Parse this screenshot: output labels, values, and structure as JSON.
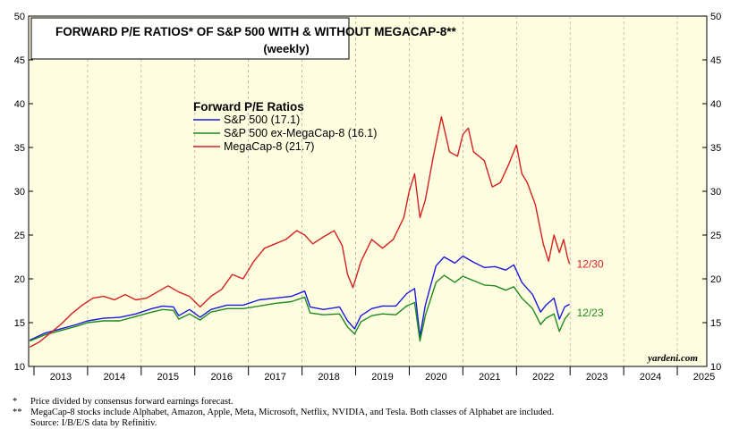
{
  "chart_data": {
    "type": "line",
    "title_line1": "FORWARD P/E RATIOS* OF S&P 500 WITH & WITHOUT MEGACAP-8**",
    "title_line2": "(weekly)",
    "ylim": [
      10,
      50
    ],
    "yticks": [
      "10",
      "15",
      "20",
      "25",
      "30",
      "35",
      "40",
      "45",
      "50"
    ],
    "xlim": [
      2012.9,
      2025.55
    ],
    "x_labels": [
      "2013",
      "2014",
      "2015",
      "2016",
      "2017",
      "2018",
      "2019",
      "2020",
      "2021",
      "2022",
      "2023",
      "2024",
      "2025"
    ],
    "legend_title": "Forward P/E Ratios",
    "series": [
      {
        "name": "S&P 500 (17.1)",
        "color": "#1a1adb",
        "points": [
          [
            2012.92,
            13.0
          ],
          [
            2013.2,
            13.8
          ],
          [
            2013.5,
            14.3
          ],
          [
            2013.8,
            14.8
          ],
          [
            2014.0,
            15.2
          ],
          [
            2014.3,
            15.5
          ],
          [
            2014.6,
            15.6
          ],
          [
            2014.9,
            16.0
          ],
          [
            2015.2,
            16.6
          ],
          [
            2015.4,
            16.9
          ],
          [
            2015.6,
            16.8
          ],
          [
            2015.7,
            15.8
          ],
          [
            2015.9,
            16.5
          ],
          [
            2016.1,
            15.6
          ],
          [
            2016.3,
            16.5
          ],
          [
            2016.6,
            17.0
          ],
          [
            2016.9,
            17.0
          ],
          [
            2017.2,
            17.6
          ],
          [
            2017.5,
            17.8
          ],
          [
            2017.8,
            18.0
          ],
          [
            2018.05,
            18.6
          ],
          [
            2018.15,
            16.8
          ],
          [
            2018.4,
            16.5
          ],
          [
            2018.7,
            16.8
          ],
          [
            2018.85,
            15.2
          ],
          [
            2018.98,
            14.3
          ],
          [
            2019.1,
            15.8
          ],
          [
            2019.3,
            16.6
          ],
          [
            2019.5,
            16.9
          ],
          [
            2019.75,
            16.9
          ],
          [
            2019.95,
            18.3
          ],
          [
            2020.1,
            18.9
          ],
          [
            2020.2,
            13.4
          ],
          [
            2020.3,
            17.0
          ],
          [
            2020.5,
            21.5
          ],
          [
            2020.65,
            22.5
          ],
          [
            2020.85,
            21.8
          ],
          [
            2021.0,
            22.6
          ],
          [
            2021.2,
            21.9
          ],
          [
            2021.4,
            21.3
          ],
          [
            2021.6,
            21.4
          ],
          [
            2021.8,
            21.0
          ],
          [
            2021.95,
            21.6
          ],
          [
            2022.1,
            19.6
          ],
          [
            2022.3,
            18.2
          ],
          [
            2022.45,
            16.2
          ],
          [
            2022.55,
            17.0
          ],
          [
            2022.7,
            17.8
          ],
          [
            2022.8,
            15.4
          ],
          [
            2022.9,
            16.8
          ],
          [
            2022.99,
            17.1
          ]
        ]
      },
      {
        "name": "S&P 500 ex-MegaCap-8 (16.1)",
        "color": "#1f8a1f",
        "points": [
          [
            2012.92,
            12.9
          ],
          [
            2013.2,
            13.6
          ],
          [
            2013.5,
            14.1
          ],
          [
            2013.8,
            14.6
          ],
          [
            2014.0,
            15.0
          ],
          [
            2014.3,
            15.2
          ],
          [
            2014.6,
            15.2
          ],
          [
            2014.9,
            15.7
          ],
          [
            2015.2,
            16.2
          ],
          [
            2015.4,
            16.5
          ],
          [
            2015.6,
            16.4
          ],
          [
            2015.7,
            15.4
          ],
          [
            2015.9,
            16.0
          ],
          [
            2016.1,
            15.3
          ],
          [
            2016.3,
            16.2
          ],
          [
            2016.6,
            16.6
          ],
          [
            2016.9,
            16.6
          ],
          [
            2017.2,
            16.9
          ],
          [
            2017.5,
            17.2
          ],
          [
            2017.8,
            17.4
          ],
          [
            2018.05,
            17.9
          ],
          [
            2018.15,
            16.1
          ],
          [
            2018.4,
            15.9
          ],
          [
            2018.7,
            16.0
          ],
          [
            2018.85,
            14.5
          ],
          [
            2018.98,
            13.7
          ],
          [
            2019.1,
            15.1
          ],
          [
            2019.3,
            15.8
          ],
          [
            2019.5,
            16.0
          ],
          [
            2019.75,
            15.9
          ],
          [
            2019.95,
            16.9
          ],
          [
            2020.1,
            17.3
          ],
          [
            2020.2,
            12.9
          ],
          [
            2020.3,
            15.8
          ],
          [
            2020.5,
            19.6
          ],
          [
            2020.65,
            20.4
          ],
          [
            2020.85,
            19.6
          ],
          [
            2021.0,
            20.3
          ],
          [
            2021.2,
            19.8
          ],
          [
            2021.4,
            19.3
          ],
          [
            2021.6,
            19.2
          ],
          [
            2021.8,
            18.7
          ],
          [
            2021.95,
            19.1
          ],
          [
            2022.1,
            17.8
          ],
          [
            2022.3,
            16.6
          ],
          [
            2022.45,
            14.8
          ],
          [
            2022.55,
            15.5
          ],
          [
            2022.7,
            16.0
          ],
          [
            2022.8,
            14.0
          ],
          [
            2022.9,
            15.4
          ],
          [
            2022.99,
            16.1
          ]
        ]
      },
      {
        "name": "MegaCap-8 (21.7)",
        "color": "#d42020",
        "points": [
          [
            2012.92,
            12.2
          ],
          [
            2013.1,
            12.8
          ],
          [
            2013.3,
            13.8
          ],
          [
            2013.5,
            14.8
          ],
          [
            2013.7,
            16.0
          ],
          [
            2013.9,
            17.0
          ],
          [
            2014.1,
            17.8
          ],
          [
            2014.3,
            18.0
          ],
          [
            2014.5,
            17.6
          ],
          [
            2014.7,
            18.2
          ],
          [
            2014.9,
            17.6
          ],
          [
            2015.1,
            17.8
          ],
          [
            2015.3,
            18.5
          ],
          [
            2015.5,
            19.2
          ],
          [
            2015.7,
            18.5
          ],
          [
            2015.9,
            18.0
          ],
          [
            2016.1,
            16.8
          ],
          [
            2016.3,
            18.0
          ],
          [
            2016.5,
            18.8
          ],
          [
            2016.7,
            20.5
          ],
          [
            2016.9,
            20.0
          ],
          [
            2017.1,
            22.0
          ],
          [
            2017.3,
            23.5
          ],
          [
            2017.5,
            24.0
          ],
          [
            2017.7,
            24.5
          ],
          [
            2017.9,
            25.5
          ],
          [
            2018.05,
            25.0
          ],
          [
            2018.2,
            24.0
          ],
          [
            2018.4,
            24.8
          ],
          [
            2018.6,
            25.5
          ],
          [
            2018.75,
            23.8
          ],
          [
            2018.85,
            20.5
          ],
          [
            2018.95,
            19.0
          ],
          [
            2019.1,
            22.0
          ],
          [
            2019.3,
            24.5
          ],
          [
            2019.5,
            23.5
          ],
          [
            2019.7,
            24.5
          ],
          [
            2019.9,
            27.0
          ],
          [
            2020.0,
            30.0
          ],
          [
            2020.1,
            32.0
          ],
          [
            2020.2,
            27.0
          ],
          [
            2020.3,
            29.0
          ],
          [
            2020.45,
            34.0
          ],
          [
            2020.6,
            38.5
          ],
          [
            2020.75,
            34.5
          ],
          [
            2020.9,
            34.0
          ],
          [
            2021.0,
            36.5
          ],
          [
            2021.1,
            37.2
          ],
          [
            2021.2,
            34.5
          ],
          [
            2021.4,
            33.5
          ],
          [
            2021.55,
            30.5
          ],
          [
            2021.7,
            31.0
          ],
          [
            2021.85,
            33.0
          ],
          [
            2022.0,
            35.3
          ],
          [
            2022.1,
            32.0
          ],
          [
            2022.2,
            31.0
          ],
          [
            2022.35,
            28.5
          ],
          [
            2022.5,
            24.0
          ],
          [
            2022.6,
            22.0
          ],
          [
            2022.7,
            25.0
          ],
          [
            2022.8,
            23.0
          ],
          [
            2022.88,
            24.5
          ],
          [
            2022.95,
            22.5
          ],
          [
            2022.99,
            21.7
          ]
        ]
      }
    ],
    "end_labels": [
      {
        "text": "12/30",
        "series": 2,
        "color": "#d42020"
      },
      {
        "text": "12/23",
        "series": 1,
        "color": "#1f8a1f"
      }
    ],
    "watermark": "yardeni.com",
    "background": "#fffde0"
  },
  "notes": {
    "n1_mark": "*",
    "n1_text": "Price divided by consensus forward earnings forecast.",
    "n2_mark": "**",
    "n2_text": "MegaCap-8 stocks include Alphabet, Amazon, Apple, Meta, Microsoft, Netflix, NVIDIA, and Tesla. Both classes of Alphabet are included.",
    "source": "Source: I/B/E/S data by Refinitiv."
  }
}
